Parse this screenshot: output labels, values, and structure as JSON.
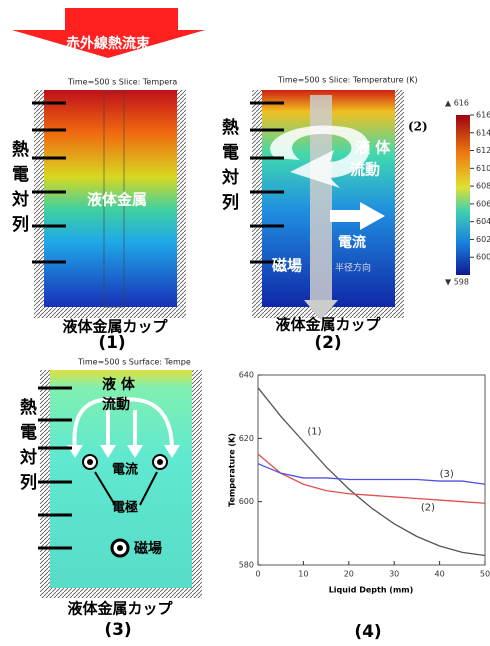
{
  "figure": {
    "banner": "赤外線熱流束",
    "panel1": {
      "header": "Time=500 s  Slice: Tempera",
      "thermocouples": "熱電対列",
      "liquid": "液体金属",
      "cup": "液体金属カップ",
      "label": "(1)"
    },
    "panel2": {
      "header": "Time=500 s  Slice: Temperature (K)",
      "thermocouples": "熱電対列",
      "flow_top": "液 体",
      "flow_bottom": "流動",
      "current": "電流",
      "field": "磁場",
      "radial": "半径方向",
      "cup": "液体金属カップ",
      "label": "(2)",
      "side_label": "(2)",
      "colorbar": {
        "max": "▲ 616",
        "min": "▼ 598",
        "range": [
          598,
          616
        ],
        "ticks": [
          616,
          614,
          612,
          610,
          608,
          606,
          604,
          602,
          600
        ]
      }
    },
    "panel3": {
      "header": "Time=500 s  Surface: Tempe",
      "thermocouples": "熱電対列",
      "flow_top": "液 体",
      "flow_bottom": "流動",
      "current": "電流",
      "electrode": "電極",
      "field": "磁場",
      "cup": "液体金属カップ",
      "label": "(3)"
    }
  },
  "chart_data": {
    "type": "line",
    "label": "(4)",
    "xlabel": "Liquid Depth (mm)",
    "ylabel": "Temperature (K)",
    "x": [
      0,
      5,
      10,
      15,
      20,
      25,
      30,
      35,
      40,
      45,
      50
    ],
    "series": [
      {
        "name": "(1)",
        "color": "#555555",
        "values": [
          636,
          627,
          619,
          611,
          604,
          598,
          593,
          589,
          586,
          584,
          583
        ]
      },
      {
        "name": "(2)",
        "color": "#e05050",
        "values": [
          615,
          609,
          605.5,
          603.5,
          602.5,
          602,
          601.5,
          601,
          600.5,
          600,
          599.5
        ]
      },
      {
        "name": "(3)",
        "color": "#5050e0",
        "values": [
          612,
          609,
          607.5,
          607.5,
          607,
          607,
          607,
          607,
          606.5,
          606.5,
          605.5
        ]
      }
    ],
    "xlim": [
      0,
      50
    ],
    "ylim": [
      580,
      640
    ],
    "xticks": [
      0,
      10,
      20,
      30,
      40,
      50
    ],
    "yticks": [
      580,
      600,
      620,
      640
    ]
  }
}
